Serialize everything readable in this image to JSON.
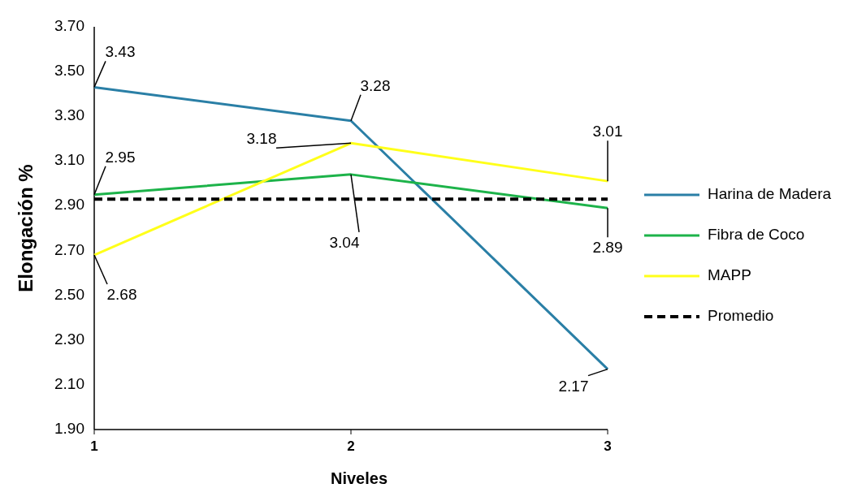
{
  "chart_data": {
    "type": "line",
    "xlabel": "Niveles",
    "ylabel": "Elongación %",
    "x": [
      1,
      2,
      3
    ],
    "xlim": [
      1,
      3
    ],
    "xticks": [
      1,
      2,
      3
    ],
    "ylim": [
      1.9,
      3.7
    ],
    "yticks": [
      {
        "value": 1.9,
        "label": "1.90"
      },
      {
        "value": 2.1,
        "label": "2.10"
      },
      {
        "value": 2.3,
        "label": "2.30"
      },
      {
        "value": 2.5,
        "label": "2.50"
      },
      {
        "value": 2.7,
        "label": "2.70"
      },
      {
        "value": 2.9,
        "label": "2.90"
      },
      {
        "value": 3.1,
        "label": "3.10"
      },
      {
        "value": 3.3,
        "label": "3.30"
      },
      {
        "value": 3.5,
        "label": "3.50"
      },
      {
        "value": 3.7,
        "label": "3.70"
      }
    ],
    "grid": false,
    "legend": "right",
    "marker": "none",
    "series": [
      {
        "name": "Harina de Madera",
        "color": "#2a7fa6",
        "values": [
          3.43,
          3.28,
          2.17
        ],
        "value_labels": [
          "3.43",
          "3.28",
          "2.17"
        ]
      },
      {
        "name": "Fibra de Coco",
        "color": "#1db34a",
        "values": [
          2.95,
          3.04,
          2.89
        ],
        "value_labels": [
          "2.95",
          "3.04",
          "2.89"
        ]
      },
      {
        "name": "MAPP",
        "color": "#ffff1a",
        "values": [
          2.68,
          3.18,
          3.01
        ],
        "value_labels": [
          "2.68",
          "3.18",
          "3.01"
        ]
      },
      {
        "name": "Promedio",
        "color": "#000000",
        "line_style": "dashed",
        "values": [
          2.93,
          2.93,
          2.93
        ]
      }
    ]
  }
}
